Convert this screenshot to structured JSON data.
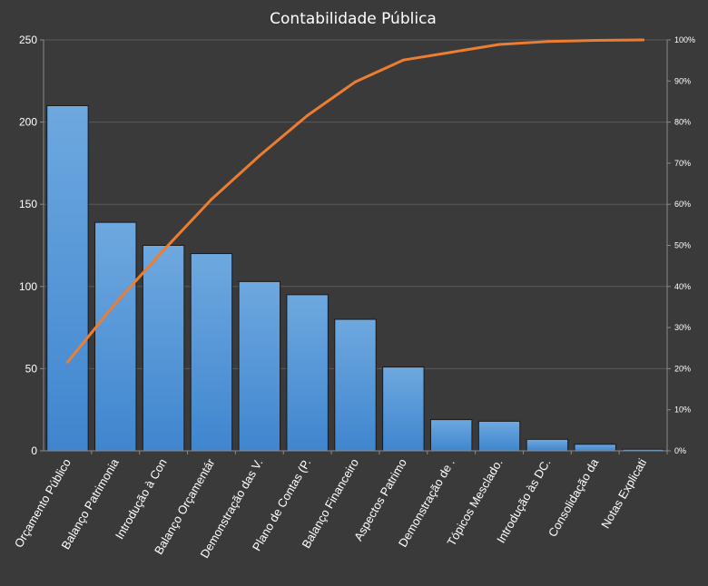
{
  "chart_data": {
    "type": "bar",
    "title": "Contabilidade Pública",
    "categories": [
      "Orçamento Público",
      "Balanço Patrimonia",
      "Introdução à Con",
      "Balanço Orçamentár",
      "Demonstração das V.",
      "Plano de Contas (P.",
      "Balanço Financeiro",
      "Aspectos Patrimo",
      "Demonstração de .",
      "Tópicos Mesclado.",
      "Introdução às DC.",
      "Consolidação da",
      "Notas Explicati"
    ],
    "series": [
      {
        "type": "bar",
        "axis": "left",
        "values": [
          210,
          139,
          125,
          120,
          103,
          95,
          80,
          51,
          19,
          18,
          7,
          4,
          1
        ],
        "color": "#5b9bd5"
      },
      {
        "type": "line",
        "axis": "right",
        "values": [
          0.216,
          0.359,
          0.488,
          0.612,
          0.718,
          0.816,
          0.898,
          0.951,
          0.97,
          0.989,
          0.996,
          0.999,
          1.0
        ],
        "color": "#ed7d31"
      }
    ],
    "ylim": [
      0,
      250
    ],
    "yticks": [
      "0",
      "50",
      "100",
      "150",
      "200",
      "250"
    ],
    "y2lim": [
      0,
      1
    ],
    "y2ticks": [
      "0%",
      "10%",
      "20%",
      "30%",
      "40%",
      "50%",
      "60%",
      "70%",
      "80%",
      "90%",
      "100%"
    ],
    "grid": true,
    "legend": "none",
    "colors": {
      "background": "#3a3a3a",
      "text": "#ffffff",
      "grid": "#5a5a5a"
    }
  }
}
